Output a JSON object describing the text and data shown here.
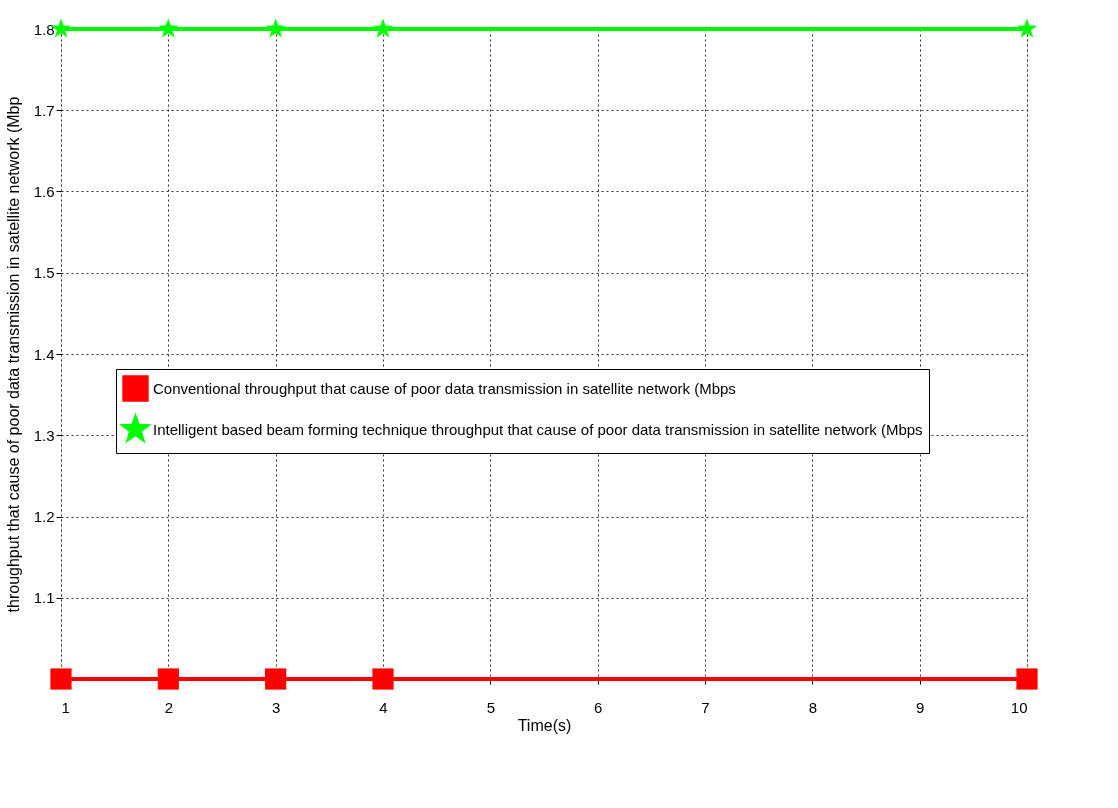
{
  "chart_data": {
    "type": "line",
    "xlabel": "Time(s)",
    "ylabel": "throughput that cause of poor data transmission in satellite network (Mbp",
    "x": [
      1,
      2,
      3,
      4,
      10
    ],
    "series": [
      {
        "name": "Conventional throughput that cause of poor data transmission in satellite network (Mbps",
        "color": "#ff0000",
        "marker": "square",
        "values": [
          1.0,
          1.0,
          1.0,
          1.0,
          1.0
        ]
      },
      {
        "name": "Intelligent based beam forming technique throughput that cause of poor data transmission in satellite network (Mbps",
        "color": "#00ff00",
        "marker": "star",
        "values": [
          1.8,
          1.8,
          1.8,
          1.8,
          1.8
        ]
      }
    ],
    "xlim": [
      1,
      10
    ],
    "xticks": [
      1,
      2,
      3,
      4,
      5,
      6,
      7,
      8,
      9,
      10
    ],
    "ylim": [
      1,
      1.8
    ],
    "yticks": [
      1.1,
      1.2,
      1.3,
      1.4,
      1.5,
      1.6,
      1.7,
      1.8
    ],
    "grid": true,
    "legend": "left",
    "line_style": "solid"
  }
}
